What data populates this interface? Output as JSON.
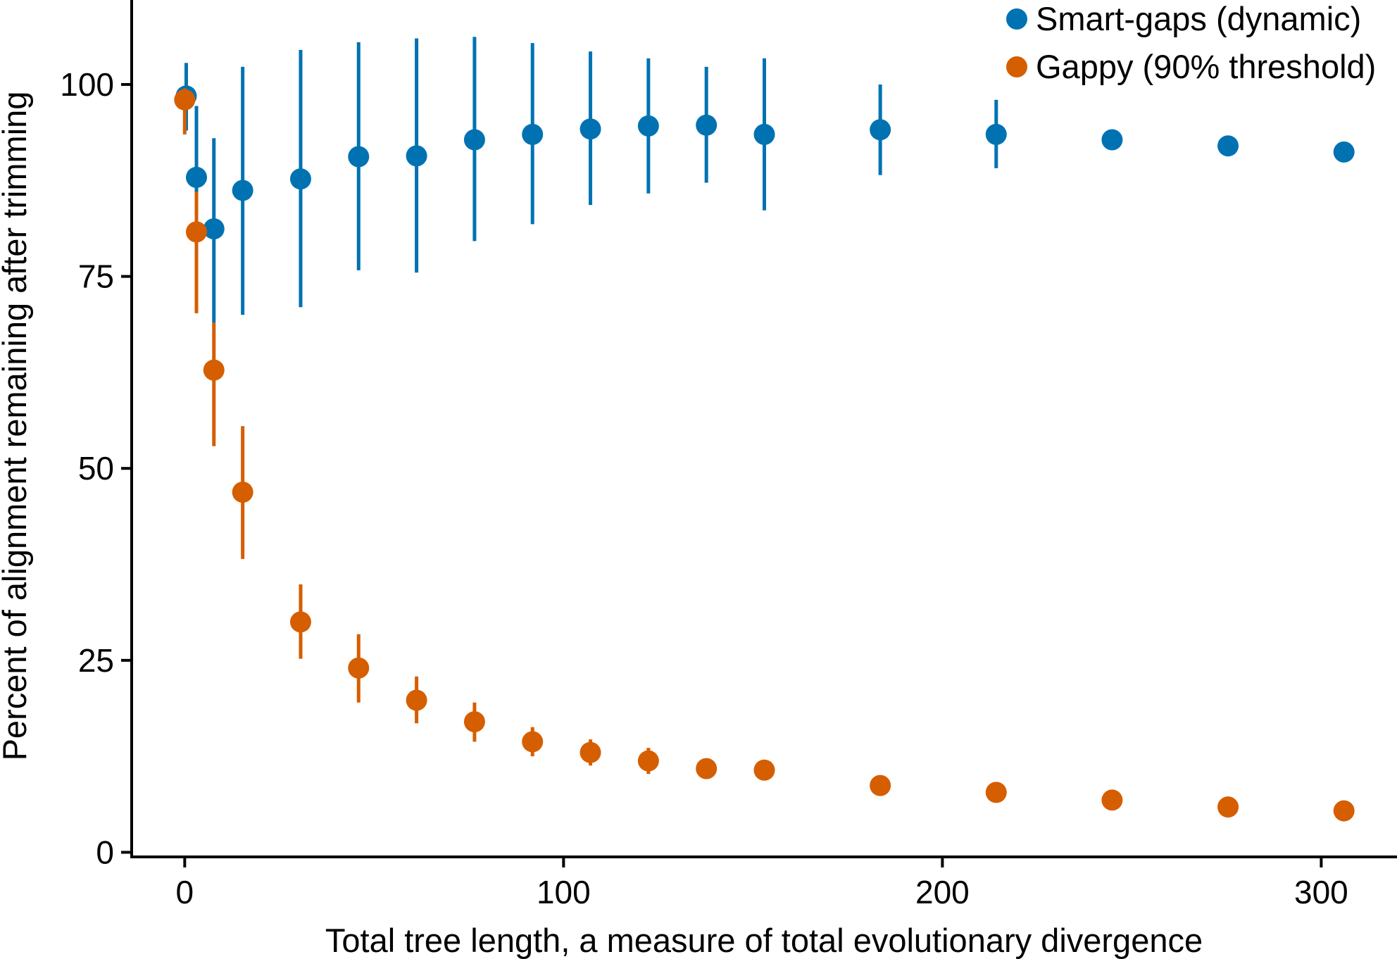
{
  "chart_data": {
    "type": "scatter",
    "title": "",
    "xlabel": "Total tree length, a measure of total evolutionary divergence",
    "ylabel": "Percent of alignment remaining after trimming",
    "xlim": [
      -14,
      320
    ],
    "ylim": [
      -0.6,
      111
    ],
    "x_ticks": [
      0,
      100,
      200,
      300
    ],
    "y_ticks": [
      0,
      25,
      50,
      75,
      100
    ],
    "grid": false,
    "legend_position": "top-right",
    "series": [
      {
        "name": "Smart-gaps (dynamic)",
        "color": "#0072B2",
        "points": [
          {
            "x": 0.4,
            "y": 98.5,
            "lo": 94.0,
            "hi": 102.8
          },
          {
            "x": 3.1,
            "y": 87.9,
            "lo": 78.5,
            "hi": 97.2
          },
          {
            "x": 7.7,
            "y": 81.2,
            "lo": 69.0,
            "hi": 93.0
          },
          {
            "x": 15.3,
            "y": 86.2,
            "lo": 70.0,
            "hi": 102.3
          },
          {
            "x": 30.6,
            "y": 87.7,
            "lo": 71.0,
            "hi": 104.5
          },
          {
            "x": 45.9,
            "y": 90.6,
            "lo": 75.8,
            "hi": 105.5
          },
          {
            "x": 61.2,
            "y": 90.7,
            "lo": 75.5,
            "hi": 106.0
          },
          {
            "x": 76.5,
            "y": 92.8,
            "lo": 79.6,
            "hi": 106.2
          },
          {
            "x": 91.8,
            "y": 93.5,
            "lo": 81.8,
            "hi": 105.4
          },
          {
            "x": 107.1,
            "y": 94.2,
            "lo": 84.3,
            "hi": 104.3
          },
          {
            "x": 122.4,
            "y": 94.6,
            "lo": 85.8,
            "hi": 103.4
          },
          {
            "x": 137.7,
            "y": 94.7,
            "lo": 87.2,
            "hi": 102.3
          },
          {
            "x": 153.0,
            "y": 93.5,
            "lo": 83.6,
            "hi": 103.4
          },
          {
            "x": 183.6,
            "y": 94.1,
            "lo": 88.2,
            "hi": 100.0
          },
          {
            "x": 214.2,
            "y": 93.5,
            "lo": 89.1,
            "hi": 98.0
          },
          {
            "x": 244.8,
            "y": 92.8
          },
          {
            "x": 275.4,
            "y": 92.0
          },
          {
            "x": 306.0,
            "y": 91.2
          }
        ]
      },
      {
        "name": "Gappy (90% threshold)",
        "color": "#D55E00",
        "points": [
          {
            "x": 0.0,
            "y": 98.0,
            "lo": 93.5,
            "hi": 99.5
          },
          {
            "x": 3.1,
            "y": 80.8,
            "lo": 70.2,
            "hi": 86.0
          },
          {
            "x": 7.7,
            "y": 62.8,
            "lo": 52.9,
            "hi": 69.0
          },
          {
            "x": 15.3,
            "y": 46.9,
            "lo": 38.2,
            "hi": 55.5
          },
          {
            "x": 30.6,
            "y": 30.0,
            "lo": 25.2,
            "hi": 34.9
          },
          {
            "x": 45.9,
            "y": 24.0,
            "lo": 19.5,
            "hi": 28.4
          },
          {
            "x": 61.2,
            "y": 19.8,
            "lo": 16.8,
            "hi": 22.9
          },
          {
            "x": 76.5,
            "y": 17.0,
            "lo": 14.4,
            "hi": 19.5
          },
          {
            "x": 91.8,
            "y": 14.4,
            "lo": 12.5,
            "hi": 16.3
          },
          {
            "x": 107.1,
            "y": 13.0,
            "lo": 11.3,
            "hi": 14.7
          },
          {
            "x": 122.4,
            "y": 11.9,
            "lo": 10.2,
            "hi": 13.6
          },
          {
            "x": 137.7,
            "y": 10.9
          },
          {
            "x": 153.0,
            "y": 10.7
          },
          {
            "x": 183.6,
            "y": 8.7
          },
          {
            "x": 214.2,
            "y": 7.8
          },
          {
            "x": 244.8,
            "y": 6.8
          },
          {
            "x": 275.4,
            "y": 5.9
          },
          {
            "x": 306.0,
            "y": 5.4
          }
        ]
      }
    ]
  }
}
